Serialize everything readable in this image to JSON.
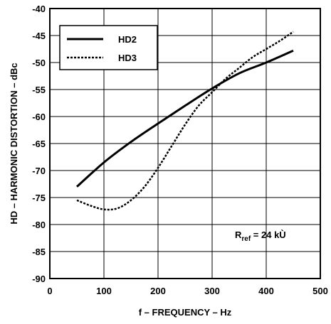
{
  "chart_data": {
    "type": "line",
    "title": "",
    "xlabel": "f – FREQUENCY – Hz",
    "ylabel": "HD – HARMONIC DISTORTION – dBc",
    "xlim": [
      0,
      500
    ],
    "ylim": [
      -90,
      -40
    ],
    "xticks": [
      "0",
      "100",
      "200",
      "300",
      "400",
      "500"
    ],
    "yticks": [
      "-40",
      "-45",
      "-50",
      "-55",
      "-60",
      "-65",
      "-70",
      "-75",
      "-80",
      "-85",
      "-90"
    ],
    "grid": true,
    "legend": "top-left",
    "annotation": {
      "main": "R",
      "sub": "ref",
      "rest": " = 24 kÙ"
    },
    "series": [
      {
        "name": "HD2",
        "style": "solid",
        "x": [
          50,
          100,
          150,
          200,
          250,
          300,
          350,
          400,
          450
        ],
        "y": [
          -73,
          -68.5,
          -64.7,
          -61.3,
          -58,
          -54.8,
          -52,
          -50,
          -47.8
        ]
      },
      {
        "name": "HD3",
        "style": "dotted",
        "x": [
          50,
          75,
          100,
          125,
          150,
          175,
          200,
          225,
          250,
          275,
          300,
          325,
          350,
          375,
          400,
          425,
          450
        ],
        "y": [
          -75.5,
          -76.5,
          -77.2,
          -77,
          -75.5,
          -73,
          -69.5,
          -65.5,
          -61.5,
          -58,
          -55.5,
          -53,
          -51,
          -49,
          -47.5,
          -46,
          -44.3
        ]
      }
    ]
  }
}
